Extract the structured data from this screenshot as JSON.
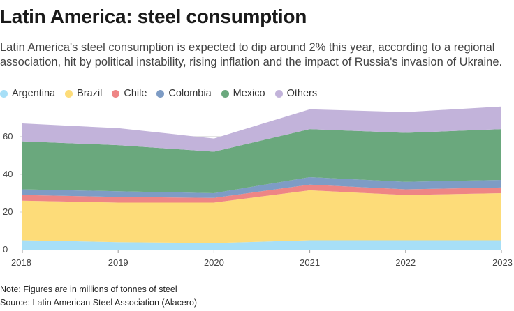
{
  "header": {
    "title": "Latin America: steel consumption",
    "subtitle": "Latin America's steel consumption is expected to dip around 2% this year, according to a regional association, hit by political instability, rising inflation and the impact of Russia's invasion of Ukraine."
  },
  "footer": {
    "note": "Note: Figures are in millions of tonnes of steel",
    "source": "Source: Latin American Steel Association (Alacero)"
  },
  "colors": {
    "Argentina": "#a7dff7",
    "Brazil": "#fddc79",
    "Chile": "#ee8585",
    "Colombia": "#7e9cc5",
    "Mexico": "#6aa87d",
    "Others": "#c2b3da",
    "grid": "#d4d4d4",
    "axis": "#999999"
  },
  "chart_data": {
    "type": "area",
    "stacked": true,
    "title": "Latin America: steel consumption",
    "xlabel": "",
    "ylabel": "",
    "x": [
      "2018",
      "2019",
      "2020",
      "2021",
      "2022",
      "2023"
    ],
    "ylim": [
      0,
      77
    ],
    "yticks": [
      0,
      20,
      40,
      60
    ],
    "grid": true,
    "legend_position": "top-left",
    "series": [
      {
        "name": "Argentina",
        "values": [
          5,
          4,
          3.5,
          5,
          5,
          5
        ]
      },
      {
        "name": "Brazil",
        "values": [
          21,
          21,
          21.5,
          26.5,
          24,
          25
        ]
      },
      {
        "name": "Chile",
        "values": [
          3,
          3,
          2.5,
          3,
          3,
          3
        ]
      },
      {
        "name": "Colombia",
        "values": [
          3,
          3,
          2.5,
          4,
          4,
          4
        ]
      },
      {
        "name": "Mexico",
        "values": [
          25.5,
          24.5,
          22,
          25.5,
          26,
          27
        ]
      },
      {
        "name": "Others",
        "values": [
          9.5,
          9,
          7,
          10.5,
          11,
          12
        ]
      }
    ]
  }
}
